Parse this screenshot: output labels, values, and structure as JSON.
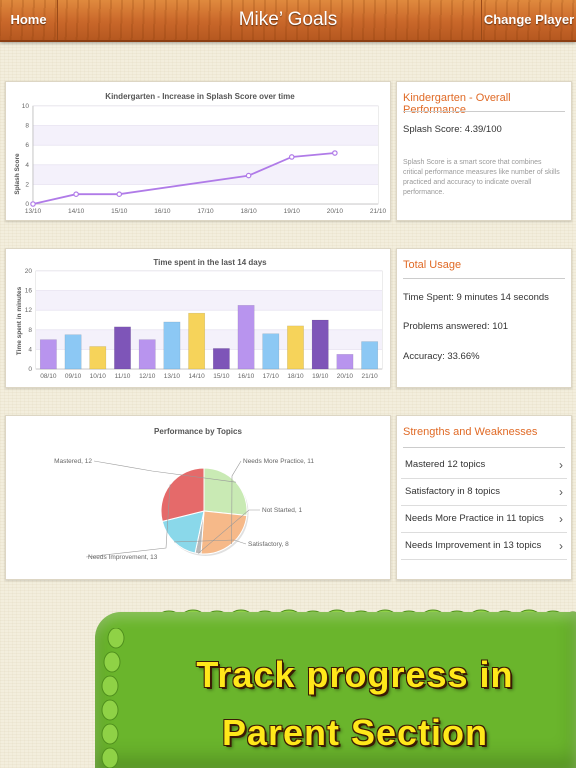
{
  "header": {
    "home_label": "Home",
    "title": "Mike’ Goals",
    "change_label": "Change Player"
  },
  "splash_chart": {
    "chart_data": {
      "type": "line",
      "title": "Kindergarten - Increase in Splash Score over time",
      "ylabel": "Splash Score",
      "categories": [
        "13/10",
        "14/10",
        "15/10",
        "16/10",
        "17/10",
        "18/10",
        "19/10",
        "20/10",
        "21/10"
      ],
      "values": [
        0,
        1.0,
        1.0,
        null,
        null,
        2.9,
        4.8,
        5.2,
        null
      ],
      "ylim": [
        0,
        10
      ],
      "yticks": [
        "0",
        "2",
        "4",
        "6",
        "8",
        "10"
      ],
      "color": "#b07be8"
    }
  },
  "overall": {
    "title": "Kindergarten - Overall Performance",
    "score_text": "Splash Score: 4.39/100",
    "note": "Splash Score is a smart score that combines critical performance measures like number of skills practiced and accuracy to indicate overall performance."
  },
  "time_chart": {
    "chart_data": {
      "type": "bar",
      "title": "Time spent in the last 14 days",
      "ylabel": "Time spent in minutes",
      "categories": [
        "08/10",
        "09/10",
        "10/10",
        "11/10",
        "12/10",
        "13/10",
        "14/10",
        "15/10",
        "16/10",
        "17/10",
        "18/10",
        "19/10",
        "20/10",
        "21/10"
      ],
      "values": [
        6,
        7,
        4.6,
        8.6,
        6,
        9.6,
        11.4,
        4.2,
        13,
        7.2,
        8.8,
        10,
        3,
        5.6
      ],
      "colors": [
        "#b894ee",
        "#8cc8f4",
        "#f6d35a",
        "#7e55b8",
        "#b894ee",
        "#8cc8f4",
        "#f6d35a",
        "#7e55b8",
        "#b894ee",
        "#8cc8f4",
        "#f6d35a",
        "#7e55b8",
        "#b894ee",
        "#8cc8f4"
      ],
      "ylim": [
        0,
        20
      ],
      "yticks": [
        "0",
        "4",
        "8",
        "12",
        "16",
        "20"
      ]
    }
  },
  "usage": {
    "title": "Total Usage",
    "time_spent": "Time Spent: 9 minutes 14 seconds",
    "problems": "Problems answered: 101",
    "accuracy": "Accuracy: 33.66%"
  },
  "topics_chart": {
    "chart_data": {
      "type": "pie",
      "title": "Performance by Topics",
      "slices": [
        {
          "label": "Mastered, 12",
          "value": 12,
          "color": "#c9eab4"
        },
        {
          "label": "Needs More Practice, 11",
          "value": 11,
          "color": "#f6b989"
        },
        {
          "label": "Not Started, 1",
          "value": 1,
          "color": "#b9b9b9"
        },
        {
          "label": "Satisfactory, 8",
          "value": 8,
          "color": "#8ad8ea"
        },
        {
          "label": "Needs Improvement, 13",
          "value": 13,
          "color": "#e56a6a"
        }
      ]
    }
  },
  "strengths": {
    "title": "Strengths and Weaknesses",
    "items": [
      {
        "label": "Mastered 12 topics"
      },
      {
        "label": "Satisfactory in 8 topics"
      },
      {
        "label": "Needs More Practice in 11 topics"
      },
      {
        "label": "Needs Improvement in 13 topics"
      }
    ]
  },
  "banner": {
    "line1": "Track progress in",
    "line2": "Parent Section"
  }
}
